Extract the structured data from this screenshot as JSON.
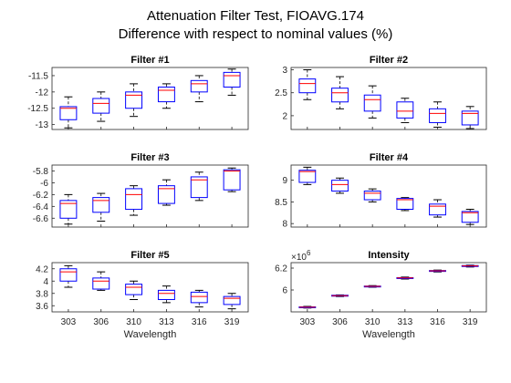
{
  "figure": {
    "title_line1": "Attenuation Filter Test, FIOAVG.174",
    "title_line2": "Difference with respect to nominal values (%)"
  },
  "colors": {
    "box": "#0000ff",
    "median": "#ff0000",
    "whisker": "#000000",
    "axes": "#262626"
  },
  "chart_data": [
    {
      "type": "box",
      "title": "Filter #1",
      "categories": [
        "303",
        "306",
        "310",
        "313",
        "316",
        "319"
      ],
      "xlabel": "",
      "ylim": [
        -13.15,
        -11.25
      ],
      "yticks": [
        -13,
        -12.5,
        -12,
        -11.5
      ],
      "ytick_labels": [
        "-13",
        "-12.5",
        "-12",
        "-11.5"
      ],
      "boxes": [
        {
          "whisker_low": -13.1,
          "q1": -12.85,
          "median": -12.5,
          "q3": -12.45,
          "whisker_high": -12.15
        },
        {
          "whisker_low": -12.9,
          "q1": -12.65,
          "median": -12.35,
          "q3": -12.2,
          "whisker_high": -12.0
        },
        {
          "whisker_low": -12.75,
          "q1": -12.5,
          "median": -12.1,
          "q3": -12.0,
          "whisker_high": -11.75
        },
        {
          "whisker_low": -12.5,
          "q1": -12.3,
          "median": -11.95,
          "q3": -11.85,
          "whisker_high": -11.75
        },
        {
          "whisker_low": -12.3,
          "q1": -12.0,
          "median": -11.75,
          "q3": -11.65,
          "whisker_high": -11.5
        },
        {
          "whisker_low": -12.1,
          "q1": -11.85,
          "median": -11.5,
          "q3": -11.4,
          "whisker_high": -11.3
        }
      ]
    },
    {
      "type": "box",
      "title": "Filter #2",
      "categories": [
        "303",
        "306",
        "310",
        "313",
        "316",
        "319"
      ],
      "xlabel": "",
      "ylim": [
        1.7,
        3.05
      ],
      "yticks": [
        2,
        2.5,
        3
      ],
      "ytick_labels": [
        "2",
        "2.5",
        "3"
      ],
      "boxes": [
        {
          "whisker_low": 2.35,
          "q1": 2.5,
          "median": 2.7,
          "q3": 2.8,
          "whisker_high": 3.0
        },
        {
          "whisker_low": 2.15,
          "q1": 2.3,
          "median": 2.5,
          "q3": 2.6,
          "whisker_high": 2.85
        },
        {
          "whisker_low": 1.95,
          "q1": 2.1,
          "median": 2.35,
          "q3": 2.45,
          "whisker_high": 2.65
        },
        {
          "whisker_low": 1.85,
          "q1": 1.95,
          "median": 2.1,
          "q3": 2.3,
          "whisker_high": 2.38
        },
        {
          "whisker_low": 1.75,
          "q1": 1.85,
          "median": 2.05,
          "q3": 2.15,
          "whisker_high": 2.3
        },
        {
          "whisker_low": 1.72,
          "q1": 1.8,
          "median": 2.05,
          "q3": 2.1,
          "whisker_high": 2.2
        }
      ]
    },
    {
      "type": "box",
      "title": "Filter #3",
      "categories": [
        "303",
        "306",
        "310",
        "313",
        "316",
        "319"
      ],
      "xlabel": "",
      "ylim": [
        -6.75,
        -5.7
      ],
      "yticks": [
        -6.6,
        -6.4,
        -6.2,
        -6,
        -5.8
      ],
      "ytick_labels": [
        "-6.6",
        "-6.4",
        "-6.2",
        "-6",
        "-5.8"
      ],
      "boxes": [
        {
          "whisker_low": -6.7,
          "q1": -6.6,
          "median": -6.35,
          "q3": -6.3,
          "whisker_high": -6.2
        },
        {
          "whisker_low": -6.65,
          "q1": -6.5,
          "median": -6.3,
          "q3": -6.25,
          "whisker_high": -6.18
        },
        {
          "whisker_low": -6.55,
          "q1": -6.45,
          "median": -6.2,
          "q3": -6.1,
          "whisker_high": -6.05
        },
        {
          "whisker_low": -6.38,
          "q1": -6.35,
          "median": -6.1,
          "q3": -6.05,
          "whisker_high": -5.95
        },
        {
          "whisker_low": -6.3,
          "q1": -6.25,
          "median": -5.95,
          "q3": -5.9,
          "whisker_high": -5.82
        },
        {
          "whisker_low": -6.15,
          "q1": -6.12,
          "median": -5.8,
          "q3": -5.78,
          "whisker_high": -5.75
        }
      ]
    },
    {
      "type": "box",
      "title": "Filter #4",
      "categories": [
        "303",
        "306",
        "310",
        "313",
        "316",
        "319"
      ],
      "xlabel": "",
      "ylim": [
        7.92,
        9.35
      ],
      "yticks": [
        8,
        8.5,
        9
      ],
      "ytick_labels": [
        "8",
        "8.5",
        "9"
      ],
      "boxes": [
        {
          "whisker_low": 8.9,
          "q1": 8.95,
          "median": 9.2,
          "q3": 9.23,
          "whisker_high": 9.3
        },
        {
          "whisker_low": 8.7,
          "q1": 8.75,
          "median": 8.9,
          "q3": 9.0,
          "whisker_high": 9.05
        },
        {
          "whisker_low": 8.5,
          "q1": 8.55,
          "median": 8.7,
          "q3": 8.75,
          "whisker_high": 8.8
        },
        {
          "whisker_low": 8.3,
          "q1": 8.33,
          "median": 8.55,
          "q3": 8.58,
          "whisker_high": 8.6
        },
        {
          "whisker_low": 8.15,
          "q1": 8.2,
          "median": 8.4,
          "q3": 8.45,
          "whisker_high": 8.55
        },
        {
          "whisker_low": 7.98,
          "q1": 8.03,
          "median": 8.25,
          "q3": 8.28,
          "whisker_high": 8.33
        }
      ]
    },
    {
      "type": "box",
      "title": "Filter #5",
      "categories": [
        "303",
        "306",
        "310",
        "313",
        "316",
        "319"
      ],
      "xlabel": "Wavelength",
      "ylim": [
        3.5,
        4.3
      ],
      "yticks": [
        3.6,
        3.8,
        4,
        4.2
      ],
      "ytick_labels": [
        "3.6",
        "3.8",
        "4",
        "4.2"
      ],
      "boxes": [
        {
          "whisker_low": 3.9,
          "q1": 4.0,
          "median": 4.15,
          "q3": 4.2,
          "whisker_high": 4.25
        },
        {
          "whisker_low": 3.85,
          "q1": 3.87,
          "median": 4.0,
          "q3": 4.05,
          "whisker_high": 4.15
        },
        {
          "whisker_low": 3.7,
          "q1": 3.78,
          "median": 3.9,
          "q3": 3.95,
          "whisker_high": 4.0
        },
        {
          "whisker_low": 3.65,
          "q1": 3.7,
          "median": 3.8,
          "q3": 3.85,
          "whisker_high": 3.92
        },
        {
          "whisker_low": 3.58,
          "q1": 3.65,
          "median": 3.75,
          "q3": 3.82,
          "whisker_high": 3.85
        },
        {
          "whisker_low": 3.55,
          "q1": 3.62,
          "median": 3.72,
          "q3": 3.75,
          "whisker_high": 3.8
        }
      ]
    },
    {
      "type": "box",
      "title": "Intensity",
      "categories": [
        "303",
        "306",
        "310",
        "313",
        "316",
        "319"
      ],
      "xlabel": "Wavelength",
      "ylim": [
        5.8,
        6.25
      ],
      "yticks": [
        6,
        6.2
      ],
      "ytick_labels": [
        "6",
        "6.2"
      ],
      "exponent_label": "×10",
      "exponent_power": "6",
      "boxes": [
        {
          "whisker_low": 5.835,
          "q1": 5.84,
          "median": 5.843,
          "q3": 5.846,
          "whisker_high": 5.85
        },
        {
          "whisker_low": 5.94,
          "q1": 5.945,
          "median": 5.948,
          "q3": 5.952,
          "whisker_high": 5.955
        },
        {
          "whisker_low": 6.025,
          "q1": 6.03,
          "median": 6.033,
          "q3": 6.036,
          "whisker_high": 6.04
        },
        {
          "whisker_low": 6.1,
          "q1": 6.105,
          "median": 6.11,
          "q3": 6.113,
          "whisker_high": 6.118
        },
        {
          "whisker_low": 6.165,
          "q1": 6.17,
          "median": 6.175,
          "q3": 6.178,
          "whisker_high": 6.182
        },
        {
          "whisker_low": 6.21,
          "q1": 6.215,
          "median": 6.22,
          "q3": 6.223,
          "whisker_high": 6.227
        }
      ]
    }
  ]
}
